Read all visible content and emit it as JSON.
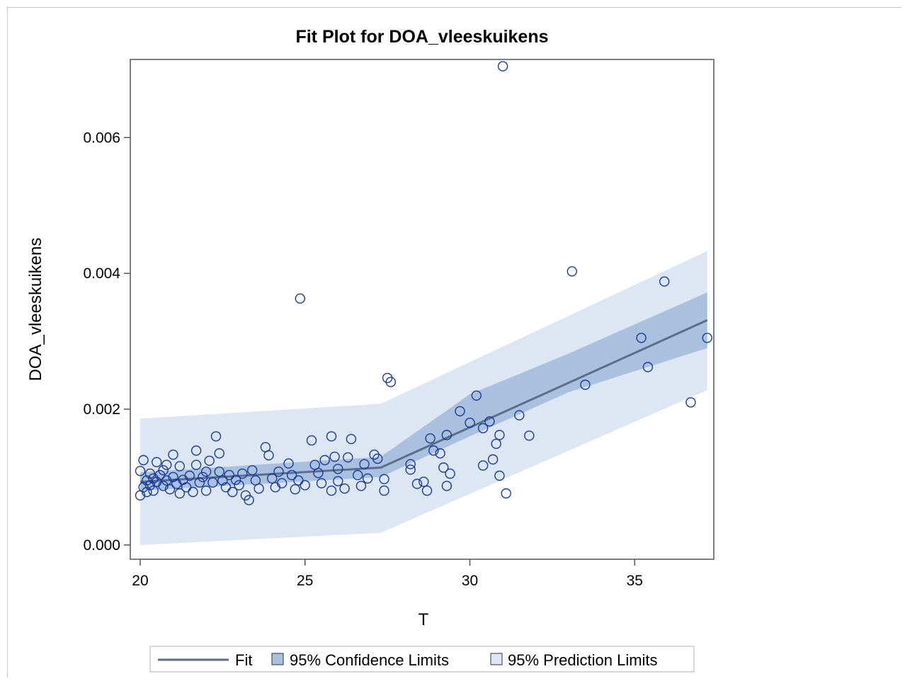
{
  "colors": {
    "marker": "#1a3a9a",
    "fit_line": "#5a6e8c",
    "confidence_band": "#a9c1df",
    "prediction_band": "#dde7f3",
    "axis": "#555555"
  },
  "legend": {
    "fit_label": "Fit",
    "confidence_label": "95% Confidence Limits",
    "prediction_label": "95% Prediction Limits"
  },
  "chart_data": {
    "type": "scatter",
    "title": "Fit Plot for DOA_vleeskuikens",
    "xlabel": "T",
    "ylabel": "DOA_vleeskuikens",
    "xlim": [
      19.7,
      37.4
    ],
    "ylim": [
      -0.00021,
      0.00715
    ],
    "xticks": [
      20,
      25,
      30,
      35
    ],
    "xtick_labels": [
      "20",
      "25",
      "30",
      "35"
    ],
    "yticks": [
      0,
      0.002,
      0.004,
      0.006
    ],
    "ytick_labels": [
      "0.000",
      "0.002",
      "0.004",
      "0.006"
    ],
    "grid": false,
    "legend_position": "bottom",
    "fit": {
      "x": [
        20.0,
        27.3,
        37.2
      ],
      "y": [
        0.00093,
        0.00114,
        0.00331
      ]
    },
    "confidence_band": {
      "x": [
        20.0,
        27.3,
        30.0,
        33.0,
        37.2
      ],
      "lower": [
        0.0008,
        0.001,
        0.0016,
        0.00225,
        0.0029
      ],
      "upper": [
        0.00107,
        0.0013,
        0.00222,
        0.00282,
        0.00372
      ]
    },
    "prediction_band": {
      "x": [
        20.0,
        27.3,
        37.2
      ],
      "lower": [
        0.0,
        0.00018,
        0.00228
      ],
      "upper": [
        0.00186,
        0.00208,
        0.00433
      ]
    },
    "points": [
      [
        20.0,
        0.00073
      ],
      [
        20.0,
        0.00109
      ],
      [
        20.1,
        0.00125
      ],
      [
        20.1,
        0.00085
      ],
      [
        20.2,
        0.00095
      ],
      [
        20.2,
        0.00078
      ],
      [
        20.3,
        0.00105
      ],
      [
        20.3,
        0.00088
      ],
      [
        20.4,
        0.00098
      ],
      [
        20.4,
        0.0008
      ],
      [
        20.5,
        0.00122
      ],
      [
        20.5,
        0.00093
      ],
      [
        20.6,
        0.00103
      ],
      [
        20.7,
        0.00087
      ],
      [
        20.7,
        0.0011
      ],
      [
        20.8,
        0.00118
      ],
      [
        20.8,
        0.00095
      ],
      [
        20.9,
        0.00082
      ],
      [
        21.0,
        0.00133
      ],
      [
        21.0,
        0.001
      ],
      [
        21.1,
        0.0009
      ],
      [
        21.2,
        0.00076
      ],
      [
        21.2,
        0.00116
      ],
      [
        21.3,
        0.00096
      ],
      [
        21.4,
        0.00085
      ],
      [
        21.5,
        0.00102
      ],
      [
        21.6,
        0.00078
      ],
      [
        21.7,
        0.00139
      ],
      [
        21.7,
        0.00118
      ],
      [
        21.8,
        0.00092
      ],
      [
        21.9,
        0.001
      ],
      [
        22.0,
        0.0008
      ],
      [
        22.0,
        0.00108
      ],
      [
        22.1,
        0.00124
      ],
      [
        22.2,
        0.00092
      ],
      [
        22.3,
        0.0016
      ],
      [
        22.4,
        0.00135
      ],
      [
        22.4,
        0.00108
      ],
      [
        22.5,
        0.00095
      ],
      [
        22.6,
        0.00085
      ],
      [
        22.7,
        0.00103
      ],
      [
        22.8,
        0.00078
      ],
      [
        22.9,
        0.00096
      ],
      [
        23.0,
        0.00088
      ],
      [
        23.1,
        0.00105
      ],
      [
        23.2,
        0.00073
      ],
      [
        23.3,
        0.00066
      ],
      [
        23.4,
        0.0011
      ],
      [
        23.5,
        0.00095
      ],
      [
        23.6,
        0.00083
      ],
      [
        23.8,
        0.00144
      ],
      [
        23.9,
        0.00132
      ],
      [
        24.0,
        0.00098
      ],
      [
        24.1,
        0.00085
      ],
      [
        24.2,
        0.00108
      ],
      [
        24.3,
        0.00091
      ],
      [
        24.5,
        0.0012
      ],
      [
        24.6,
        0.00103
      ],
      [
        24.7,
        0.00082
      ],
      [
        24.8,
        0.00095
      ],
      [
        24.85,
        0.00363
      ],
      [
        25.0,
        0.00088
      ],
      [
        25.2,
        0.00154
      ],
      [
        25.3,
        0.00118
      ],
      [
        25.4,
        0.00106
      ],
      [
        25.5,
        0.00091
      ],
      [
        25.6,
        0.00125
      ],
      [
        25.8,
        0.0016
      ],
      [
        25.8,
        0.0008
      ],
      [
        25.9,
        0.0013
      ],
      [
        26.0,
        0.00112
      ],
      [
        26.0,
        0.00094
      ],
      [
        26.2,
        0.00083
      ],
      [
        26.3,
        0.00129
      ],
      [
        26.4,
        0.00156
      ],
      [
        26.6,
        0.00103
      ],
      [
        26.7,
        0.00087
      ],
      [
        26.8,
        0.00119
      ],
      [
        26.9,
        0.00098
      ],
      [
        27.1,
        0.00133
      ],
      [
        27.2,
        0.00127
      ],
      [
        27.4,
        0.00097
      ],
      [
        27.4,
        0.0008
      ],
      [
        27.5,
        0.00246
      ],
      [
        27.6,
        0.0024
      ],
      [
        28.2,
        0.00119
      ],
      [
        28.2,
        0.00111
      ],
      [
        28.4,
        0.0009
      ],
      [
        28.6,
        0.00093
      ],
      [
        28.7,
        0.0008
      ],
      [
        28.8,
        0.00157
      ],
      [
        28.9,
        0.00139
      ],
      [
        29.1,
        0.00135
      ],
      [
        29.2,
        0.00114
      ],
      [
        29.3,
        0.00162
      ],
      [
        29.3,
        0.00087
      ],
      [
        29.4,
        0.00105
      ],
      [
        29.7,
        0.00197
      ],
      [
        30.0,
        0.0018
      ],
      [
        30.2,
        0.0022
      ],
      [
        30.4,
        0.00172
      ],
      [
        30.4,
        0.00117
      ],
      [
        30.6,
        0.00182
      ],
      [
        30.7,
        0.00126
      ],
      [
        30.8,
        0.00149
      ],
      [
        30.9,
        0.00162
      ],
      [
        30.9,
        0.00102
      ],
      [
        31.0,
        0.00705
      ],
      [
        31.1,
        0.00076
      ],
      [
        31.5,
        0.00191
      ],
      [
        31.8,
        0.00161
      ],
      [
        33.1,
        0.00403
      ],
      [
        33.5,
        0.00236
      ],
      [
        35.2,
        0.00305
      ],
      [
        35.4,
        0.00262
      ],
      [
        35.9,
        0.00388
      ],
      [
        36.7,
        0.0021
      ],
      [
        37.2,
        0.00305
      ]
    ]
  }
}
